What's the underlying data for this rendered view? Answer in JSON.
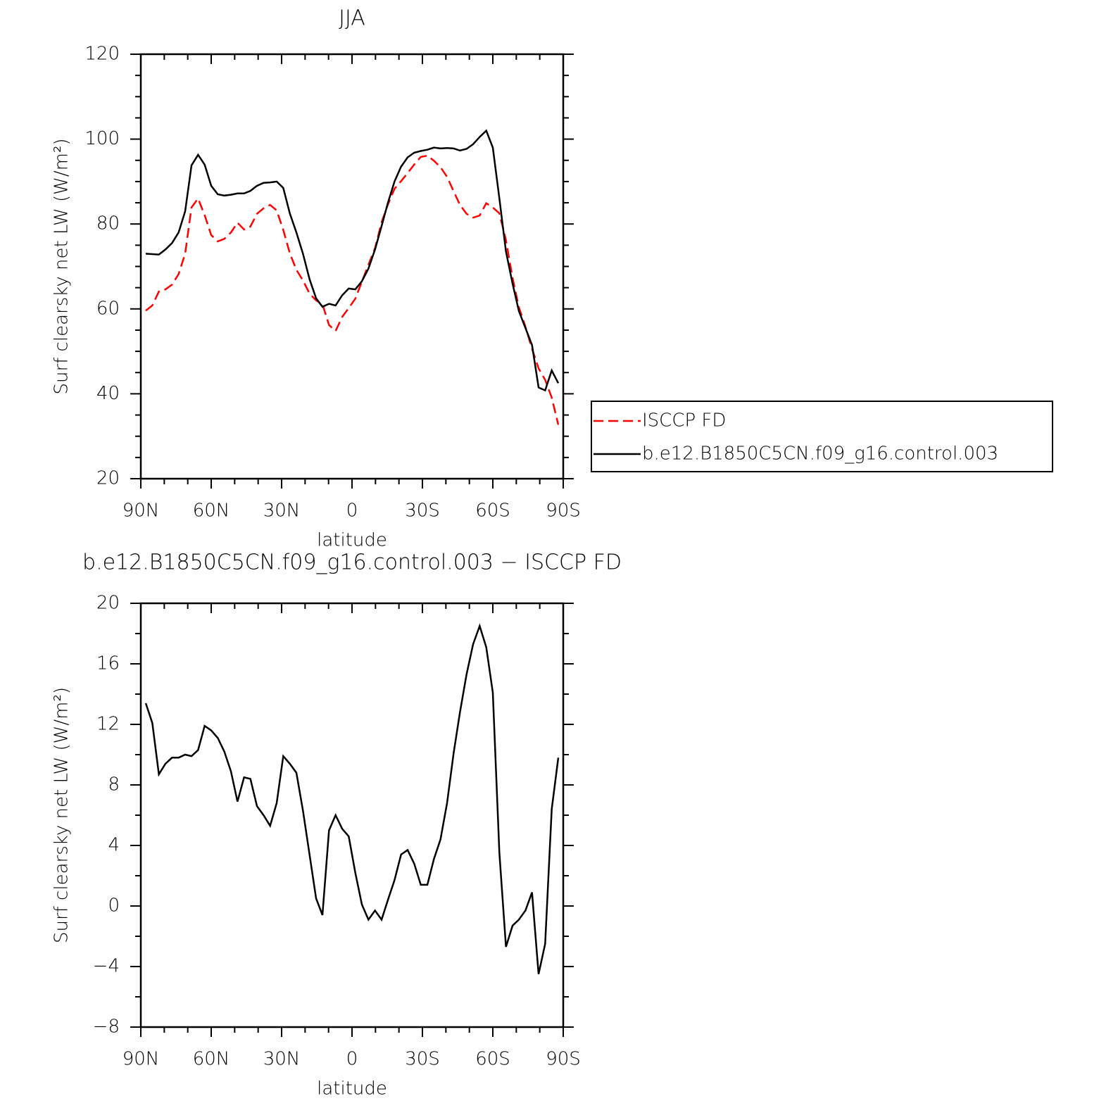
{
  "chart_data": [
    {
      "type": "line",
      "title": "JJA",
      "xlabel": "latitude",
      "ylabel": "Surf clearsky net LW (W/m²)",
      "x": [
        87.9,
        85.1,
        82.3,
        79.5,
        76.7,
        73.9,
        71.1,
        68.4,
        65.6,
        62.8,
        60.0,
        57.2,
        54.4,
        51.6,
        48.8,
        46.0,
        43.3,
        40.5,
        37.7,
        34.9,
        32.1,
        29.3,
        26.5,
        23.7,
        20.9,
        18.1,
        15.3,
        12.6,
        9.8,
        7.0,
        4.2,
        1.4,
        -1.4,
        -4.2,
        -7.0,
        -9.8,
        -12.6,
        -15.3,
        -18.1,
        -20.9,
        -23.7,
        -26.5,
        -29.3,
        -32.1,
        -34.9,
        -37.7,
        -40.5,
        -43.3,
        -46.0,
        -48.8,
        -51.6,
        -54.4,
        -57.2,
        -60.0,
        -62.8,
        -65.6,
        -68.4,
        -71.1,
        -73.9,
        -76.7,
        -79.5,
        -82.3,
        -85.1,
        -87.9
      ],
      "xlim": [
        90,
        -90
      ],
      "xticks": [
        {
          "value": 90,
          "label": "90N"
        },
        {
          "value": 60,
          "label": "60N"
        },
        {
          "value": 30,
          "label": "30N"
        },
        0,
        {
          "value": -30,
          "label": "30S"
        },
        {
          "value": -60,
          "label": "60S"
        },
        {
          "value": -90,
          "label": "90S"
        }
      ],
      "ylim": [
        20,
        120
      ],
      "yticks": [
        20,
        40,
        60,
        80,
        100,
        120
      ],
      "legend": "right",
      "series": [
        {
          "name": "ISCCP FD",
          "color": "#ff0000",
          "dashed": true,
          "values": [
            59.6,
            60.8,
            64.1,
            64.6,
            65.7,
            68.2,
            73.0,
            83.9,
            86.0,
            82.1,
            77.4,
            75.9,
            76.5,
            78.0,
            80.3,
            78.7,
            79.4,
            82.4,
            83.7,
            84.5,
            83.2,
            78.6,
            73.1,
            69.2,
            66.7,
            63.6,
            62.0,
            61.1,
            56.2,
            54.8,
            58.1,
            60.2,
            62.4,
            66.4,
            70.4,
            74.3,
            80.4,
            84.6,
            88.3,
            90.1,
            92.0,
            94.0,
            95.8,
            96.1,
            94.9,
            93.4,
            91.1,
            87.7,
            84.5,
            82.4,
            81.5,
            82.0,
            84.9,
            83.9,
            82.5,
            76.2,
            67.3,
            60.4,
            55.8,
            50.6,
            46.0,
            43.3,
            39.1,
            32.7
          ]
        },
        {
          "name": "b.e12.B1850C5CN.f09_g16.control.003",
          "color": "#000000",
          "dashed": false,
          "values": [
            73.0,
            72.9,
            72.8,
            74.0,
            75.5,
            78.0,
            83.0,
            93.8,
            96.3,
            94.0,
            89.0,
            87.0,
            86.7,
            86.9,
            87.2,
            87.2,
            87.8,
            89.0,
            89.7,
            89.8,
            90.0,
            88.5,
            82.5,
            78.0,
            73.0,
            67.0,
            62.5,
            60.5,
            61.2,
            60.8,
            63.2,
            64.8,
            64.6,
            66.5,
            69.5,
            74.0,
            79.5,
            85.0,
            90.0,
            93.5,
            95.7,
            96.8,
            97.2,
            97.5,
            98.0,
            97.8,
            97.9,
            97.8,
            97.3,
            97.7,
            98.8,
            100.5,
            102.0,
            98.0,
            86.0,
            73.5,
            66.0,
            59.5,
            55.5,
            51.5,
            41.5,
            40.8,
            45.5,
            42.5
          ]
        }
      ]
    },
    {
      "type": "line",
      "title": "b.e12.B1850C5CN.f09_g16.control.003 − ISCCP FD",
      "xlabel": "latitude",
      "ylabel": "Surf clearsky net LW (W/m²)",
      "x": [
        87.9,
        85.1,
        82.3,
        79.5,
        76.7,
        73.9,
        71.1,
        68.4,
        65.6,
        62.8,
        60.0,
        57.2,
        54.4,
        51.6,
        48.8,
        46.0,
        43.3,
        40.5,
        37.7,
        34.9,
        32.1,
        29.3,
        26.5,
        23.7,
        20.9,
        18.1,
        15.3,
        12.6,
        9.8,
        7.0,
        4.2,
        1.4,
        -1.4,
        -4.2,
        -7.0,
        -9.8,
        -12.6,
        -15.3,
        -18.1,
        -20.9,
        -23.7,
        -26.5,
        -29.3,
        -32.1,
        -34.9,
        -37.7,
        -40.5,
        -43.3,
        -46.0,
        -48.8,
        -51.6,
        -54.4,
        -57.2,
        -60.0,
        -62.8,
        -65.6,
        -68.4,
        -71.1,
        -73.9,
        -76.7,
        -79.5,
        -82.3,
        -85.1,
        -87.9
      ],
      "xlim": [
        90,
        -90
      ],
      "xticks": [
        {
          "value": 90,
          "label": "90N"
        },
        {
          "value": 60,
          "label": "60N"
        },
        {
          "value": 30,
          "label": "30N"
        },
        0,
        {
          "value": -30,
          "label": "30S"
        },
        {
          "value": -60,
          "label": "60S"
        },
        {
          "value": -90,
          "label": "90S"
        }
      ],
      "ylim": [
        -8,
        20
      ],
      "yticks": [
        {
          "value": -8,
          "label": "−8"
        },
        {
          "value": -4,
          "label": "−4"
        },
        0,
        4,
        8,
        12,
        16,
        20
      ],
      "series": [
        {
          "color": "#000000",
          "dashed": false,
          "values": [
            13.4,
            12.1,
            8.7,
            9.4,
            9.8,
            9.8,
            10.0,
            9.9,
            10.3,
            11.9,
            11.6,
            11.1,
            10.2,
            8.9,
            6.9,
            8.5,
            8.4,
            6.6,
            6.0,
            5.3,
            6.8,
            9.9,
            9.4,
            8.8,
            6.3,
            3.4,
            0.5,
            -0.6,
            5.0,
            6.0,
            5.1,
            4.6,
            2.2,
            0.1,
            -0.9,
            -0.3,
            -0.9,
            0.4,
            1.7,
            3.4,
            3.7,
            2.8,
            1.4,
            1.4,
            3.1,
            4.4,
            6.8,
            10.1,
            12.8,
            15.3,
            17.3,
            18.5,
            17.1,
            14.1,
            3.5,
            -2.7,
            -1.3,
            -0.9,
            -0.3,
            0.9,
            -4.5,
            -2.5,
            6.4,
            9.8
          ]
        }
      ]
    }
  ]
}
